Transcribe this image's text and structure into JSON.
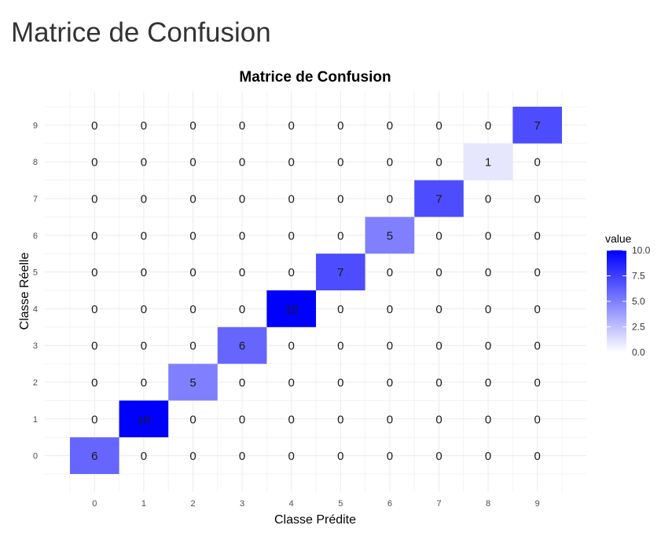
{
  "page": {
    "title": "Matrice de Confusion"
  },
  "chart_data": {
    "type": "heatmap",
    "title": "Matrice de Confusion",
    "xlabel": "Classe Prédite",
    "ylabel": "Classe Réelle",
    "x_categories": [
      "0",
      "1",
      "2",
      "3",
      "4",
      "5",
      "6",
      "7",
      "8",
      "9"
    ],
    "y_categories": [
      "0",
      "1",
      "2",
      "3",
      "4",
      "5",
      "6",
      "7",
      "8",
      "9"
    ],
    "matrix": [
      [
        6,
        0,
        0,
        0,
        0,
        0,
        0,
        0,
        0,
        0
      ],
      [
        0,
        10,
        0,
        0,
        0,
        0,
        0,
        0,
        0,
        0
      ],
      [
        0,
        0,
        5,
        0,
        0,
        0,
        0,
        0,
        0,
        0
      ],
      [
        0,
        0,
        0,
        6,
        0,
        0,
        0,
        0,
        0,
        0
      ],
      [
        0,
        0,
        0,
        0,
        10,
        0,
        0,
        0,
        0,
        0
      ],
      [
        0,
        0,
        0,
        0,
        0,
        7,
        0,
        0,
        0,
        0
      ],
      [
        0,
        0,
        0,
        0,
        0,
        0,
        5,
        0,
        0,
        0
      ],
      [
        0,
        0,
        0,
        0,
        0,
        0,
        0,
        7,
        0,
        0
      ],
      [
        0,
        0,
        0,
        0,
        0,
        0,
        0,
        0,
        1,
        0
      ],
      [
        0,
        0,
        0,
        0,
        0,
        0,
        0,
        0,
        0,
        7
      ]
    ],
    "legend": {
      "title": "value",
      "ticks": [
        "10.0",
        "7.5",
        "5.0",
        "2.5",
        "0.0"
      ],
      "min": 0,
      "max": 10,
      "low_color": "#ffffff",
      "high_color": "#0000ff",
      "position": "right"
    },
    "grid": true
  }
}
